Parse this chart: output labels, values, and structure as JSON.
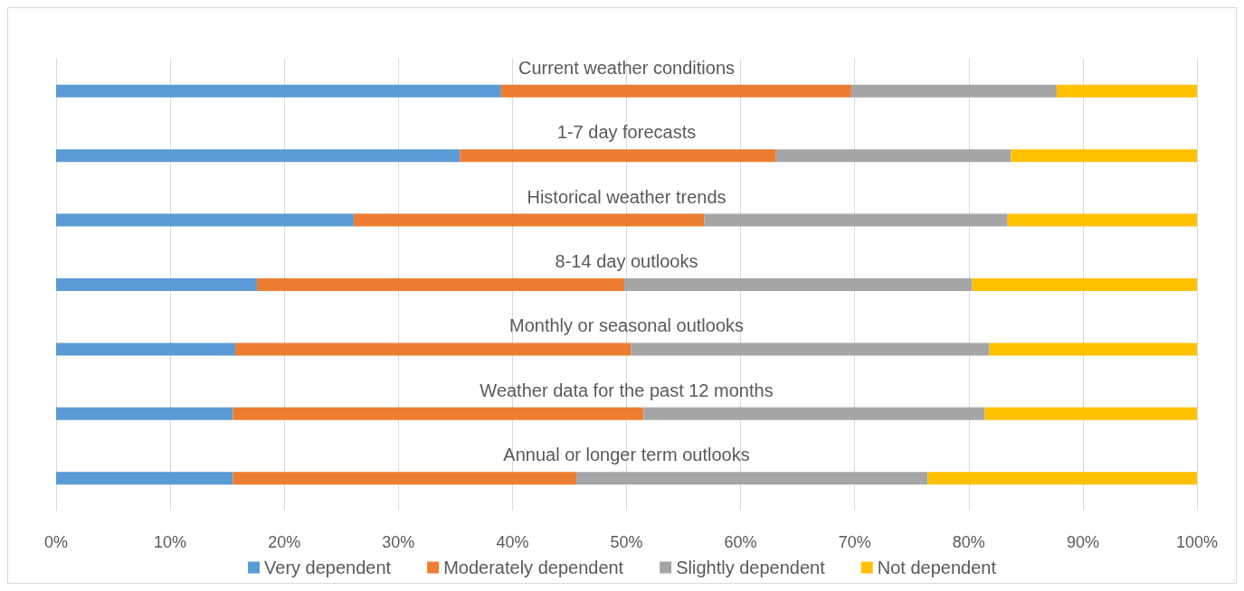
{
  "chart_data": {
    "type": "bar",
    "orientation": "horizontal",
    "stacked": true,
    "categories": [
      "Current weather conditions",
      "1-7 day forecasts",
      "Historical weather trends",
      "8-14 day outlooks",
      "Monthly or seasonal outlooks",
      "Weather data for the past 12 months",
      "Annual or longer term outlooks"
    ],
    "series": [
      {
        "name": "Very dependent",
        "color": "#5b9bd5",
        "values": [
          39.0,
          35.4,
          26.1,
          17.6,
          15.7,
          15.5,
          15.5
        ]
      },
      {
        "name": "Moderately dependent",
        "color": "#ed7d31",
        "values": [
          30.7,
          27.7,
          30.7,
          32.2,
          34.7,
          36.0,
          30.1
        ]
      },
      {
        "name": "Slightly dependent",
        "color": "#a5a5a5",
        "values": [
          18.0,
          20.6,
          26.6,
          30.5,
          31.4,
          29.9,
          30.8
        ]
      },
      {
        "name": "Not dependent",
        "color": "#ffc000",
        "values": [
          12.3,
          16.3,
          16.6,
          19.7,
          18.2,
          18.6,
          23.6
        ]
      }
    ],
    "xlim": [
      0,
      100
    ],
    "xticks": [
      {
        "value": 0,
        "label": "0%"
      },
      {
        "value": 10,
        "label": "10%"
      },
      {
        "value": 20,
        "label": "20%"
      },
      {
        "value": 30,
        "label": "30%"
      },
      {
        "value": 40,
        "label": "40%"
      },
      {
        "value": 50,
        "label": "50%"
      },
      {
        "value": 60,
        "label": "60%"
      },
      {
        "value": 70,
        "label": "70%"
      },
      {
        "value": 80,
        "label": "80%"
      },
      {
        "value": 90,
        "label": "90%"
      },
      {
        "value": 100,
        "label": "100%"
      }
    ],
    "grid": "x",
    "legend": "bottom"
  }
}
